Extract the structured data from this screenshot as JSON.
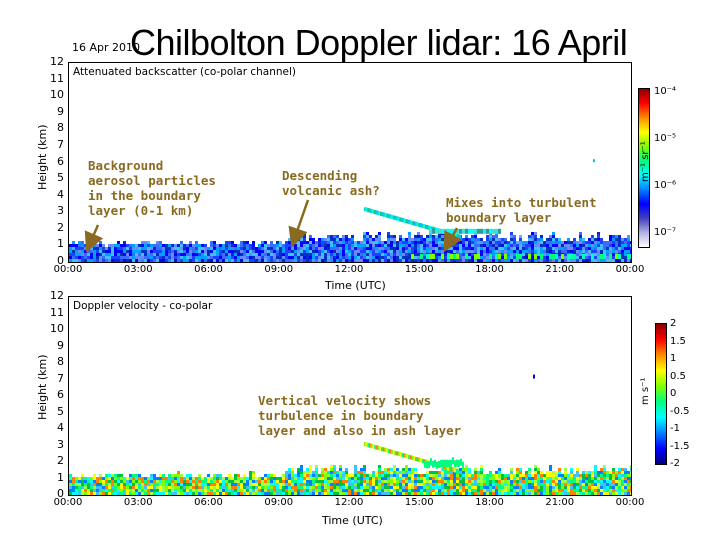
{
  "title": "Chilbolton Doppler lidar: 16 April",
  "date_tag": "16 Apr 2010",
  "colors": {
    "annotation": "#8a6a20"
  },
  "chart_data": [
    {
      "type": "heatmap",
      "title": "Attenuated backscatter (co-polar channel)",
      "xlabel": "Time (UTC)",
      "ylabel": "Height (km)",
      "xticks": [
        "00:00",
        "03:00",
        "06:00",
        "09:00",
        "12:00",
        "15:00",
        "18:00",
        "21:00",
        "00:00"
      ],
      "yticks": [
        "0",
        "1",
        "2",
        "3",
        "4",
        "5",
        "6",
        "7",
        "8",
        "9",
        "10",
        "11",
        "12"
      ],
      "ylim": [
        0,
        12
      ],
      "colorbar": {
        "label": "m⁻¹ sr⁻¹",
        "ticks": [
          "10⁻⁴",
          "10⁻⁵",
          "10⁻⁶",
          "10⁻⁷"
        ]
      },
      "annotations": [
        "Background\naerosol particles\nin the boundary\nlayer (0-1 km)",
        "Descending\nvolcanic ash?",
        "Mixes into turbulent\nboundary layer"
      ]
    },
    {
      "type": "heatmap",
      "title": "Doppler velocity - co-polar",
      "xlabel": "Time (UTC)",
      "ylabel": "Height (km)",
      "xticks": [
        "00:00",
        "03:00",
        "06:00",
        "09:00",
        "12:00",
        "15:00",
        "18:00",
        "21:00",
        "00:00"
      ],
      "yticks": [
        "0",
        "1",
        "2",
        "3",
        "4",
        "5",
        "6",
        "7",
        "8",
        "9",
        "10",
        "11",
        "12"
      ],
      "ylim": [
        0,
        12
      ],
      "colorbar": {
        "label": "m s⁻¹",
        "ticks": [
          "2",
          "1.5",
          "1",
          "0.5",
          "0",
          "-0.5",
          "-1",
          "-1.5",
          "-2"
        ]
      },
      "annotations": [
        "Vertical velocity shows\nturbulence in boundary\nlayer and also in ash layer"
      ]
    }
  ]
}
